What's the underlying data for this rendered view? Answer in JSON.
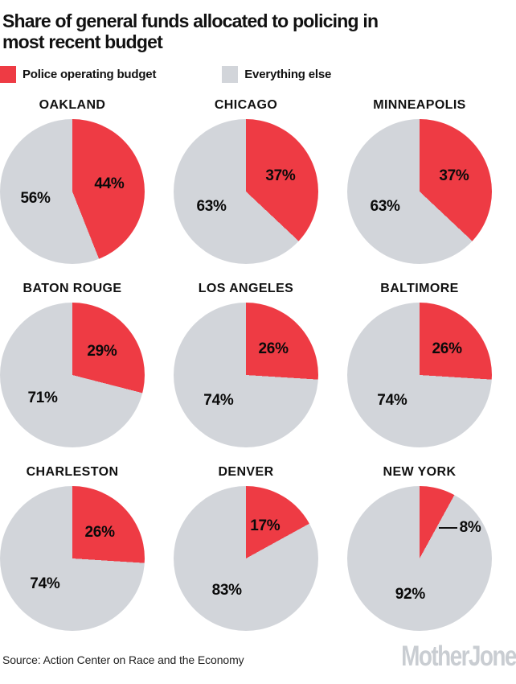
{
  "title": "Share of general funds allocated to policing in most recent budget",
  "legend": {
    "police_label": "Police operating budget",
    "else_label": "Everything else"
  },
  "colors": {
    "police": "#ee3b44",
    "everything_else": "#d2d5da",
    "label_text": "#0a0a0a",
    "logo_gray": "#c9cdd2"
  },
  "source": "Source: Action Center on Race and the Economy",
  "logo_text": "MotherJones",
  "chart_data": {
    "type": "pie",
    "title": "Share of general funds allocated to policing in most recent budget",
    "legend_entries": [
      "Police operating budget",
      "Everything else"
    ],
    "layout": "3x3 grid of pies, red slice starts at 12 o'clock going clockwise",
    "series_colors": {
      "police": "#ee3b44",
      "everything_else": "#d2d5da"
    },
    "cities": [
      {
        "name": "OAKLAND",
        "police_pct": 44,
        "else_pct": 56,
        "police_label": "44%",
        "else_label": "56%",
        "callout": false
      },
      {
        "name": "CHICAGO",
        "police_pct": 37,
        "else_pct": 63,
        "police_label": "37%",
        "else_label": "63%",
        "callout": false
      },
      {
        "name": "MINNEAPOLIS",
        "police_pct": 37,
        "else_pct": 63,
        "police_label": "37%",
        "else_label": "63%",
        "callout": false
      },
      {
        "name": "BATON ROUGE",
        "police_pct": 29,
        "else_pct": 71,
        "police_label": "29%",
        "else_label": "71%",
        "callout": false
      },
      {
        "name": "LOS ANGELES",
        "police_pct": 26,
        "else_pct": 74,
        "police_label": "26%",
        "else_label": "74%",
        "callout": false
      },
      {
        "name": "BALTIMORE",
        "police_pct": 26,
        "else_pct": 74,
        "police_label": "26%",
        "else_label": "74%",
        "callout": false
      },
      {
        "name": "CHARLESTON",
        "police_pct": 26,
        "else_pct": 74,
        "police_label": "26%",
        "else_label": "74%",
        "callout": false
      },
      {
        "name": "DENVER",
        "police_pct": 17,
        "else_pct": 83,
        "police_label": "17%",
        "else_label": "83%",
        "callout": false
      },
      {
        "name": "NEW YORK",
        "police_pct": 8,
        "else_pct": 92,
        "police_label": "8%",
        "else_label": "92%",
        "callout": true
      }
    ]
  }
}
